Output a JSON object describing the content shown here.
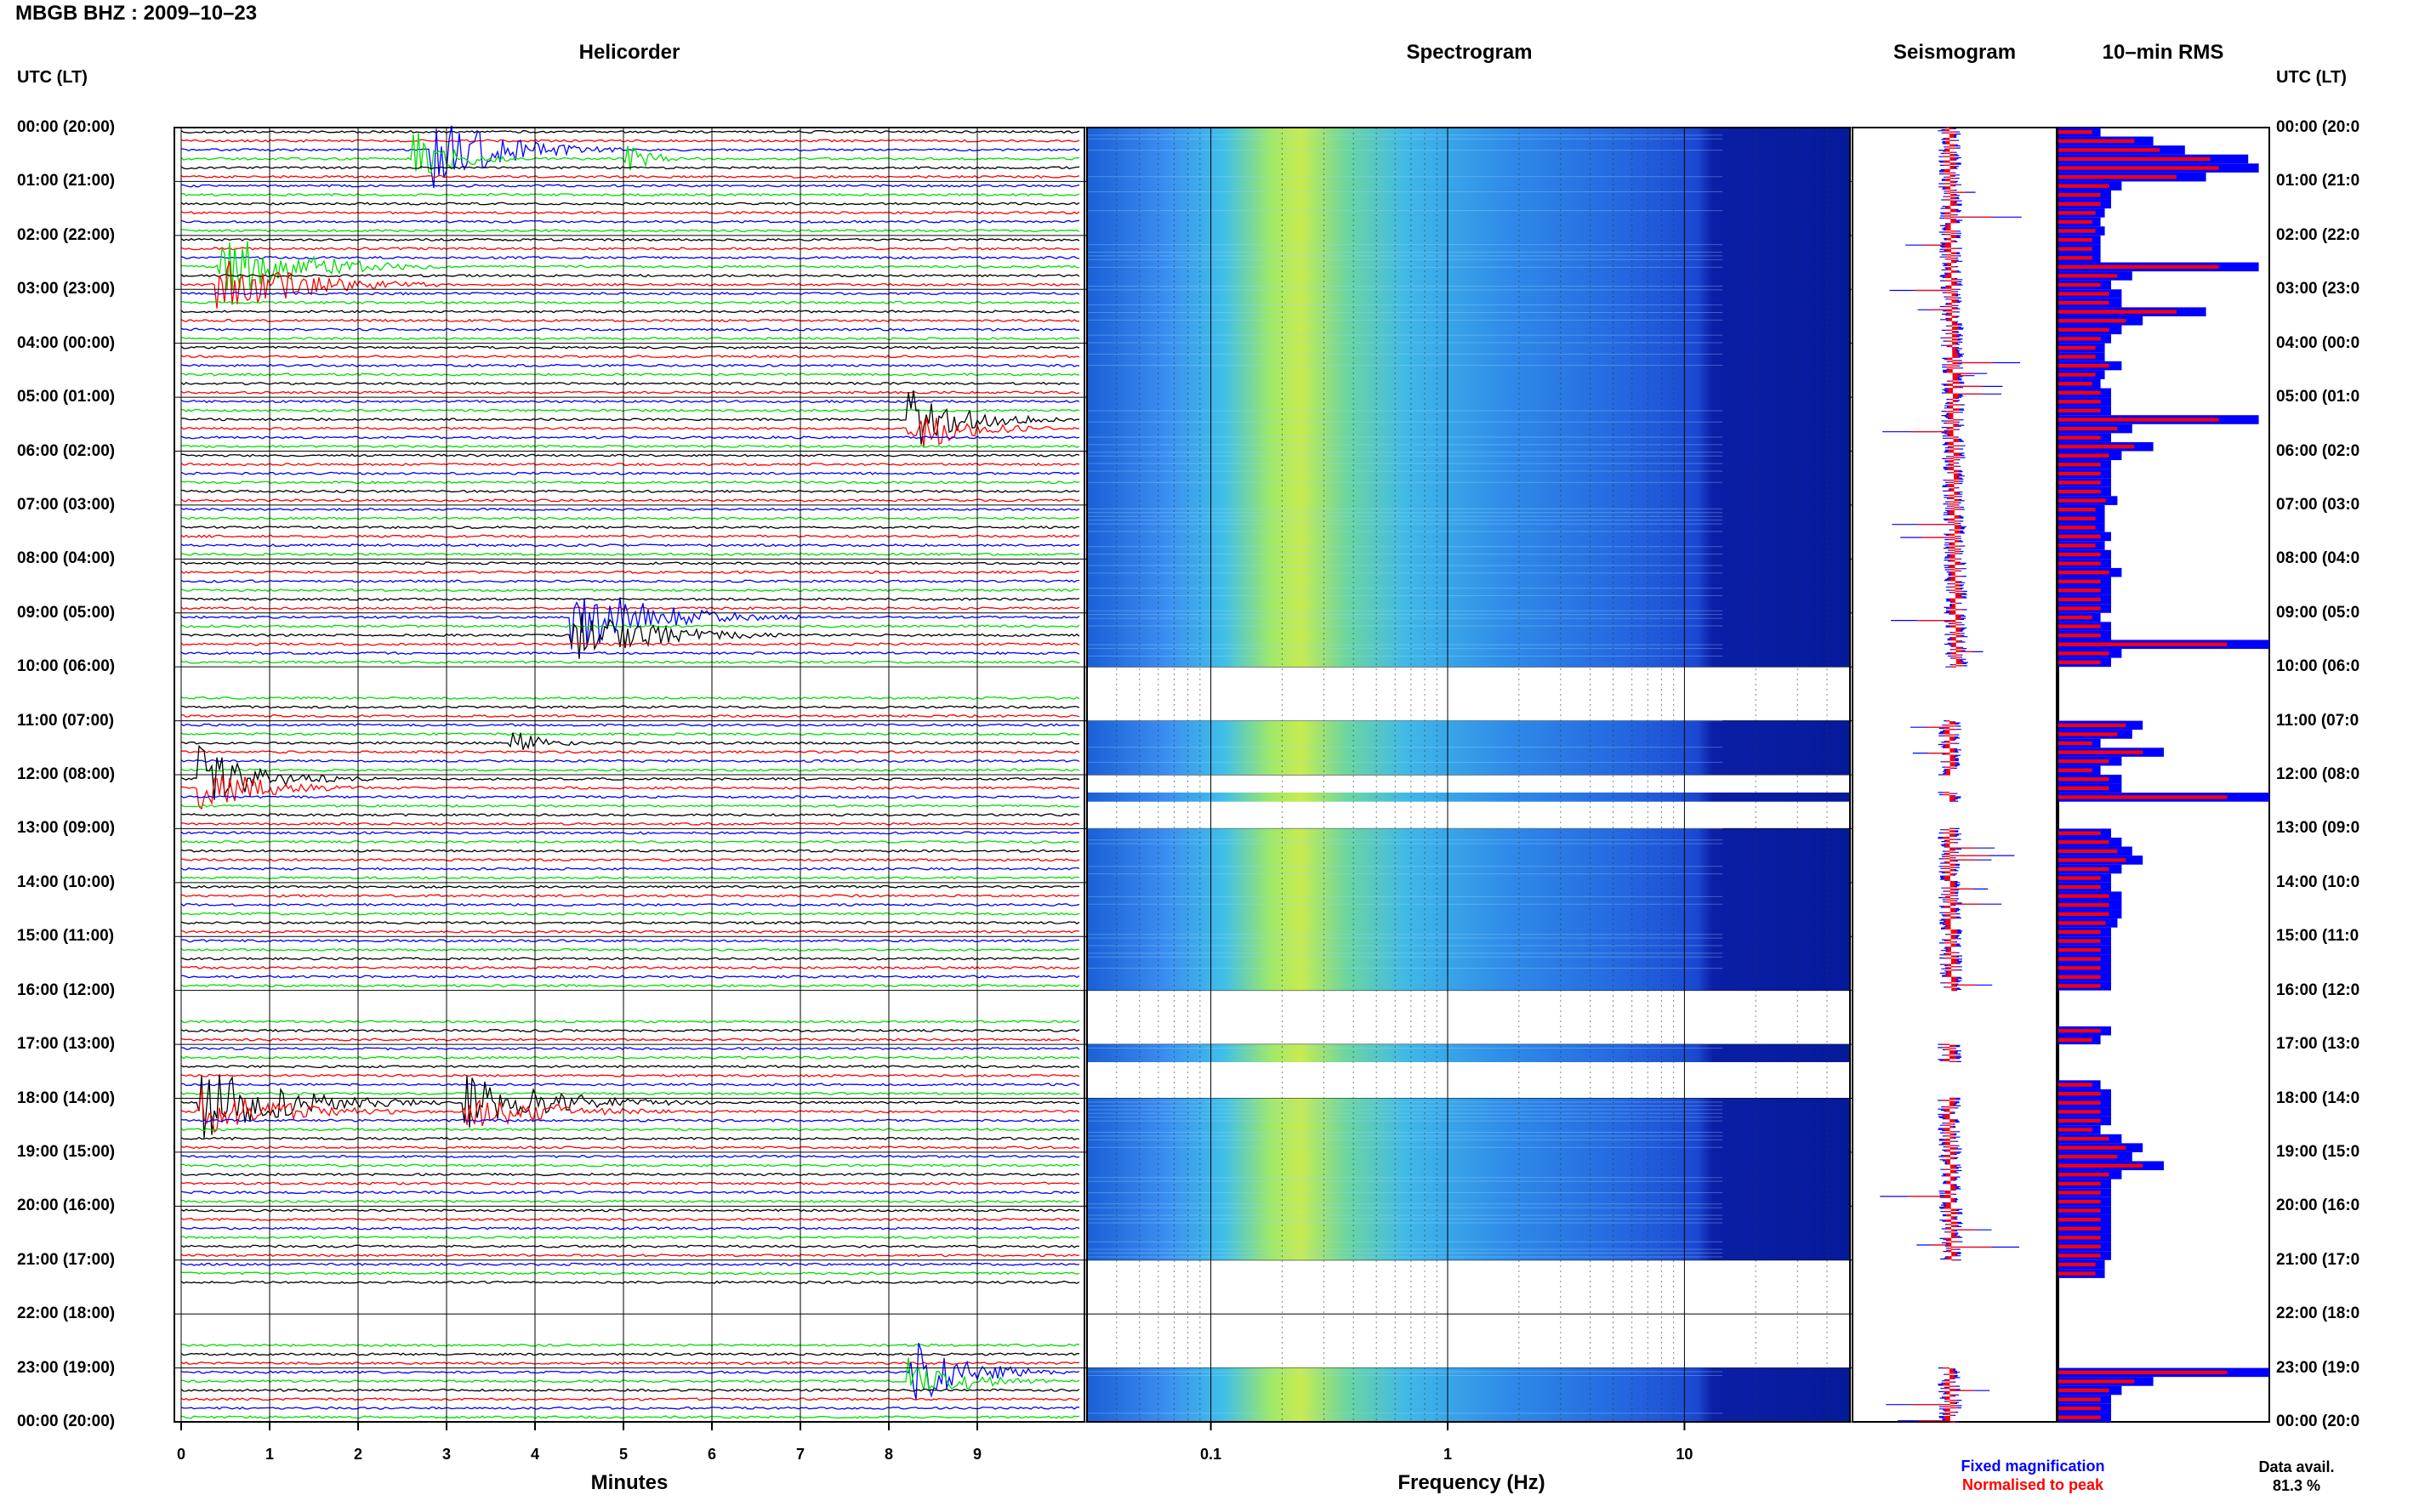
{
  "header": {
    "title": "MBGB BHZ : 2009–10–23"
  },
  "panels": {
    "helicorder": "Helicorder",
    "spectrogram": "Spectrogram",
    "seismogram": "Seismogram",
    "rms": "10–min RMS"
  },
  "axis_titles": {
    "left": "UTC (LT)",
    "right": "UTC (LT)"
  },
  "hour_labels": [
    "00:00 (20:00)",
    "01:00 (21:00)",
    "02:00 (22:00)",
    "03:00 (23:00)",
    "04:00 (00:00)",
    "05:00 (01:00)",
    "06:00 (02:00)",
    "07:00 (03:00)",
    "08:00 (04:00)",
    "09:00 (05:00)",
    "10:00 (06:00)",
    "11:00 (07:00)",
    "12:00 (08:00)",
    "13:00 (09:00)",
    "14:00 (10:00)",
    "15:00 (11:00)",
    "16:00 (12:00)",
    "17:00 (13:00)",
    "18:00 (14:00)",
    "19:00 (15:00)",
    "20:00 (16:00)",
    "21:00 (17:00)",
    "22:00 (18:00)",
    "23:00 (19:00)",
    "00:00 (20:00)"
  ],
  "hour_labels_right": [
    "00:00 (20:0",
    "01:00 (21:0",
    "02:00 (22:0",
    "03:00 (23:0",
    "04:00 (00:0",
    "05:00 (01:0",
    "06:00 (02:0",
    "07:00 (03:0",
    "08:00 (04:0",
    "09:00 (05:0",
    "10:00 (06:0",
    "11:00 (07:0",
    "12:00 (08:0",
    "13:00 (09:0",
    "14:00 (10:0",
    "15:00 (11:0",
    "16:00 (12:0",
    "17:00 (13:0",
    "18:00 (14:0",
    "19:00 (15:0",
    "20:00 (16:0",
    "21:00 (17:0",
    "22:00 (18:0",
    "23:00 (19:0",
    "00:00 (20:0"
  ],
  "x_axis": {
    "minutes_label": "Minutes",
    "minutes_ticks": [
      "0",
      "1",
      "2",
      "3",
      "4",
      "5",
      "6",
      "7",
      "8",
      "9"
    ],
    "frequency_label": "Frequency (Hz)",
    "frequency_ticks": [
      "0.1",
      "1",
      "10"
    ]
  },
  "legend": {
    "fixed": "Fixed magnification",
    "normalised": "Normalised to peak",
    "fixed_color": "#0000ff",
    "normalised_color": "#ff0000"
  },
  "data_avail": {
    "label": "Data avail.",
    "value": "81.3 %"
  },
  "chart_data": {
    "type": "heatmap",
    "station": "MBGB",
    "channel": "BHZ",
    "date": "2009-10-23",
    "trace_colors": [
      "#000000",
      "#ff0000",
      "#0000ff",
      "#00dd00"
    ],
    "helicorder": {
      "minutes_per_line": 10,
      "lines_per_hour": 6,
      "x_range_minutes": [
        0,
        10
      ],
      "y_range_hours": [
        0,
        24
      ],
      "missing_data_hours": [
        [
          10.0,
          10.5
        ],
        [
          16.0,
          16.5
        ],
        [
          21.5,
          22.5
        ]
      ]
    },
    "spectrogram": {
      "x_scale": "log",
      "x_range_hz": [
        0.03,
        50
      ],
      "data_segments_hours": [
        [
          0.0,
          10.0
        ],
        [
          11.0,
          12.0
        ],
        [
          12.33,
          12.5
        ],
        [
          13.0,
          16.0
        ],
        [
          17.0,
          17.33
        ],
        [
          18.0,
          21.0
        ],
        [
          23.0,
          24.0
        ]
      ]
    },
    "rms_10min": {
      "fixed_magnification": [
        0.2,
        0.45,
        0.6,
        0.9,
        0.95,
        0.7,
        0.3,
        0.25,
        0.25,
        0.22,
        0.2,
        0.22,
        0.2,
        0.2,
        0.2,
        0.95,
        0.35,
        0.25,
        0.3,
        0.3,
        0.7,
        0.4,
        0.3,
        0.25,
        0.22,
        0.22,
        0.3,
        0.22,
        0.2,
        0.25,
        0.25,
        0.25,
        0.95,
        0.35,
        0.25,
        0.45,
        0.3,
        0.25,
        0.25,
        0.25,
        0.25,
        0.28,
        0.22,
        0.22,
        0.22,
        0.25,
        0.22,
        0.25,
        0.25,
        0.3,
        0.25,
        0.25,
        0.25,
        0.25,
        0.2,
        0.25,
        0.25,
        1.0,
        0.3,
        0.25,
        0,
        0,
        0,
        0,
        0,
        0,
        0.4,
        0.35,
        0.2,
        0.5,
        0.3,
        0.2,
        0.3,
        0.3,
        1.0,
        0,
        0,
        0,
        0.25,
        0.3,
        0.35,
        0.4,
        0.3,
        0.25,
        0.25,
        0.3,
        0.3,
        0.3,
        0.28,
        0.25,
        0.25,
        0.25,
        0.25,
        0.25,
        0.25,
        0.25,
        0,
        0,
        0,
        0,
        0.25,
        0.2,
        0,
        0,
        0,
        0,
        0.2,
        0.25,
        0.25,
        0.25,
        0.25,
        0.2,
        0.3,
        0.4,
        0.35,
        0.5,
        0.3,
        0.25,
        0.25,
        0.25,
        0.25,
        0.25,
        0.25,
        0.25,
        0.25,
        0.25,
        0.22,
        0.22,
        0,
        0,
        0,
        0,
        0,
        0,
        0,
        0,
        0,
        0,
        1.0,
        0.45,
        0.3,
        0.25,
        0.25,
        0.25
      ]
    }
  }
}
